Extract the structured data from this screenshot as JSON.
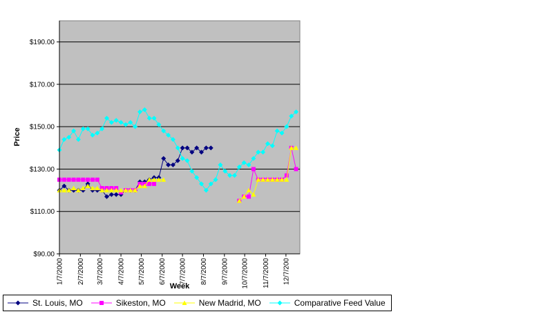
{
  "chart_data": {
    "type": "line",
    "title": "",
    "xlabel": "Week",
    "ylabel": "Price",
    "ylim": [
      90,
      200
    ],
    "yticks": [
      90,
      110,
      130,
      150,
      170,
      190
    ],
    "ytick_labels": [
      "$90.00",
      "$110.00",
      "$130.00",
      "$150.00",
      "$170.00",
      "$190.00"
    ],
    "grid": true,
    "legend_position": "bottom",
    "xticks": [
      {
        "label": "1/7/2000",
        "week": 0
      },
      {
        "label": "2/7/2000",
        "week": 4.43
      },
      {
        "label": "3/7/2000",
        "week": 8.57
      },
      {
        "label": "4/7/2000",
        "week": 13
      },
      {
        "label": "5/7/2000",
        "week": 17.29
      },
      {
        "label": "6/7/2000",
        "week": 21.71
      },
      {
        "label": "7/7/2000",
        "week": 26
      },
      {
        "label": "8/7/2000",
        "week": 30.43
      },
      {
        "label": "9/7/2000",
        "week": 34.86
      },
      {
        "label": "10/7/2000",
        "week": 39.14
      },
      {
        "label": "11/7/2000",
        "week": 43.57
      },
      {
        "label": "12/7/200",
        "week": 47.86
      }
    ],
    "x_range": [
      0,
      50.8
    ],
    "series": [
      {
        "name": "St. Louis, MO",
        "color": "#000080",
        "marker": "diamond",
        "points": [
          [
            0,
            120
          ],
          [
            1,
            122
          ],
          [
            2,
            120
          ],
          [
            3,
            120
          ],
          [
            4,
            120
          ],
          [
            5,
            120
          ],
          [
            6,
            123
          ],
          [
            7,
            120
          ],
          [
            8,
            120
          ],
          [
            9,
            120
          ],
          [
            10,
            117
          ],
          [
            11,
            118
          ],
          [
            12,
            118
          ],
          [
            13,
            118
          ],
          [
            14,
            120
          ],
          [
            15,
            120
          ],
          [
            16,
            120
          ],
          [
            17,
            124
          ],
          [
            18,
            124
          ],
          [
            19,
            125
          ],
          [
            20,
            126
          ],
          [
            21,
            126
          ],
          [
            22,
            135
          ],
          [
            23,
            132
          ],
          [
            24,
            132
          ],
          [
            25,
            134
          ],
          [
            26,
            140
          ],
          [
            27,
            140
          ],
          [
            28,
            138
          ],
          [
            29,
            140
          ],
          [
            30,
            138
          ],
          [
            31,
            140
          ],
          [
            32,
            140
          ]
        ]
      },
      {
        "name": "Sikeston, MO",
        "color": "#ff00ff",
        "marker": "square",
        "points": [
          [
            0,
            125
          ],
          [
            1,
            125
          ],
          [
            2,
            125
          ],
          [
            3,
            125
          ],
          [
            4,
            125
          ],
          [
            5,
            125
          ],
          [
            6,
            125
          ],
          [
            7,
            125
          ],
          [
            8,
            125
          ],
          [
            9,
            121
          ],
          [
            10,
            121
          ],
          [
            11,
            121
          ],
          [
            12,
            121
          ],
          [
            13,
            119
          ],
          [
            14,
            120
          ],
          [
            15,
            120
          ],
          [
            16,
            120
          ],
          [
            17,
            123
          ],
          [
            18,
            123
          ],
          [
            19,
            123
          ],
          [
            20,
            123
          ],
          [
            38,
            115
          ],
          [
            39,
            117
          ],
          [
            40,
            117
          ],
          [
            41,
            130
          ],
          [
            42,
            125
          ],
          [
            43,
            125
          ],
          [
            44,
            125
          ],
          [
            45,
            125
          ],
          [
            46,
            125
          ],
          [
            47,
            125
          ],
          [
            48,
            127
          ],
          [
            49,
            140
          ],
          [
            50,
            130
          ]
        ]
      },
      {
        "name": "New Madrid, MO",
        "color": "#ffff00",
        "marker": "triangle",
        "points": [
          [
            0,
            120
          ],
          [
            1,
            120
          ],
          [
            2,
            120
          ],
          [
            3,
            121
          ],
          [
            4,
            120
          ],
          [
            5,
            121
          ],
          [
            6,
            122
          ],
          [
            7,
            121
          ],
          [
            8,
            121
          ],
          [
            9,
            120
          ],
          [
            10,
            120
          ],
          [
            11,
            120
          ],
          [
            12,
            120
          ],
          [
            13,
            120
          ],
          [
            14,
            120
          ],
          [
            15,
            120
          ],
          [
            16,
            120
          ],
          [
            17,
            122
          ],
          [
            18,
            122
          ],
          [
            19,
            125
          ],
          [
            20,
            125
          ],
          [
            21,
            125
          ],
          [
            22,
            125
          ],
          [
            38,
            115
          ],
          [
            39,
            117
          ],
          [
            40,
            120
          ],
          [
            41,
            118
          ],
          [
            42,
            125
          ],
          [
            43,
            125
          ],
          [
            44,
            125
          ],
          [
            45,
            125
          ],
          [
            46,
            125
          ],
          [
            47,
            125
          ],
          [
            48,
            125
          ],
          [
            49,
            140
          ],
          [
            50,
            140
          ]
        ]
      },
      {
        "name": "Comparative Feed Value",
        "color": "#00ffff",
        "marker": "diamond",
        "points": [
          [
            0,
            139
          ],
          [
            1,
            144
          ],
          [
            2,
            145
          ],
          [
            3,
            148
          ],
          [
            4,
            144
          ],
          [
            5,
            149
          ],
          [
            6,
            149
          ],
          [
            7,
            146
          ],
          [
            8,
            147
          ],
          [
            9,
            149
          ],
          [
            10,
            154
          ],
          [
            11,
            152
          ],
          [
            12,
            153
          ],
          [
            13,
            152
          ],
          [
            14,
            151
          ],
          [
            15,
            152
          ],
          [
            16,
            150
          ],
          [
            17,
            157
          ],
          [
            18,
            158
          ],
          [
            19,
            154
          ],
          [
            20,
            154
          ],
          [
            21,
            151
          ],
          [
            22,
            148
          ],
          [
            23,
            146
          ],
          [
            24,
            144
          ],
          [
            25,
            140
          ],
          [
            26,
            135
          ],
          [
            27,
            134
          ],
          [
            28,
            129
          ],
          [
            29,
            126
          ],
          [
            30,
            123
          ],
          [
            31,
            120
          ],
          [
            32,
            123
          ],
          [
            33,
            125
          ],
          [
            34,
            132
          ],
          [
            35,
            129
          ],
          [
            36,
            127
          ],
          [
            37,
            127
          ],
          [
            38,
            131
          ],
          [
            39,
            133
          ],
          [
            40,
            132
          ],
          [
            41,
            135
          ],
          [
            42,
            138
          ],
          [
            43,
            138
          ],
          [
            44,
            142
          ],
          [
            45,
            141
          ],
          [
            46,
            148
          ],
          [
            47,
            147
          ],
          [
            48,
            150
          ],
          [
            49,
            155
          ],
          [
            50,
            157
          ]
        ]
      }
    ]
  }
}
